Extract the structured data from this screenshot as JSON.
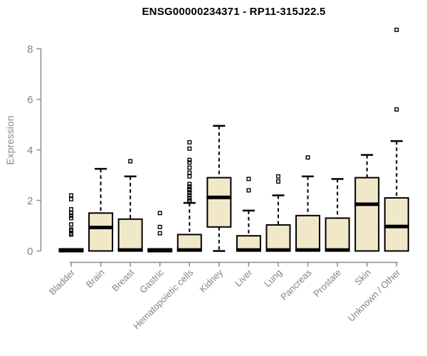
{
  "chart_data": {
    "type": "boxplot",
    "title": "ENSG00000234371 - RP11-315J22.5",
    "xlabel": "",
    "ylabel": "Expression",
    "ylim": [
      0,
      8.8
    ],
    "yticks": [
      0,
      2,
      4,
      6,
      8
    ],
    "grid": false,
    "legend": "none",
    "colors": {
      "box_fill": "#F0E8C8",
      "box_border": "#000000",
      "median": "#000000",
      "whisker": "#000000",
      "outlier": "#000000",
      "axis": "#8a8a8a",
      "tick_label": "#848484",
      "title": "#000000",
      "background": "#ffffff"
    },
    "categories": [
      "Bladder",
      "Brain",
      "Breast",
      "Gastric",
      "Hematopoietic cells",
      "Kidney",
      "Liver",
      "Lung",
      "Pancreas",
      "Prostate",
      "Skin",
      "Unknown / Other"
    ],
    "series": [
      {
        "name": "Bladder",
        "q1": 0,
        "median": 0,
        "q3": 0,
        "whisker_low": 0,
        "whisker_high": 0,
        "outliers": [
          2.2,
          2.05,
          1.65,
          1.5,
          1.4,
          1.3,
          1.05,
          0.85,
          0.8,
          0.7,
          0.65
        ]
      },
      {
        "name": "Brain",
        "q1": 0,
        "median": 0.93,
        "q3": 1.5,
        "whisker_low": 0,
        "whisker_high": 3.25,
        "outliers": []
      },
      {
        "name": "Breast",
        "q1": 0,
        "median": 0.04,
        "q3": 1.26,
        "whisker_low": 0,
        "whisker_high": 2.95,
        "outliers": [
          3.55
        ]
      },
      {
        "name": "Gastric",
        "q1": 0,
        "median": 0,
        "q3": 0,
        "whisker_low": 0,
        "whisker_high": 0,
        "outliers": [
          1.5,
          0.95,
          0.7
        ]
      },
      {
        "name": "Hematopoietic cells",
        "q1": 0,
        "median": 0.04,
        "q3": 0.65,
        "whisker_low": 0,
        "whisker_high": 1.9,
        "outliers": [
          4.3,
          4.05,
          3.6,
          3.5,
          3.3,
          3.1,
          2.95,
          2.65,
          2.55,
          2.45,
          2.4,
          2.3,
          2.2,
          2.1,
          2.0,
          1.95
        ]
      },
      {
        "name": "Kidney",
        "q1": 0.95,
        "median": 2.12,
        "q3": 2.9,
        "whisker_low": 0,
        "whisker_high": 4.95,
        "outliers": []
      },
      {
        "name": "Liver",
        "q1": 0,
        "median": 0.04,
        "q3": 0.6,
        "whisker_low": 0,
        "whisker_high": 1.6,
        "outliers": [
          2.85,
          2.4
        ]
      },
      {
        "name": "Lung",
        "q1": 0,
        "median": 0.04,
        "q3": 1.03,
        "whisker_low": 0,
        "whisker_high": 2.2,
        "outliers": [
          2.95,
          2.75
        ]
      },
      {
        "name": "Pancreas",
        "q1": 0,
        "median": 0.04,
        "q3": 1.4,
        "whisker_low": 0,
        "whisker_high": 2.95,
        "outliers": [
          3.7
        ]
      },
      {
        "name": "Prostate",
        "q1": 0,
        "median": 0.04,
        "q3": 1.3,
        "whisker_low": 0,
        "whisker_high": 2.85,
        "outliers": []
      },
      {
        "name": "Skin",
        "q1": 0,
        "median": 1.85,
        "q3": 2.9,
        "whisker_low": 0,
        "whisker_high": 3.8,
        "outliers": []
      },
      {
        "name": "Unknown / Other",
        "q1": 0,
        "median": 0.97,
        "q3": 2.1,
        "whisker_low": 0,
        "whisker_high": 4.35,
        "outliers": [
          8.75,
          5.6
        ]
      }
    ]
  }
}
